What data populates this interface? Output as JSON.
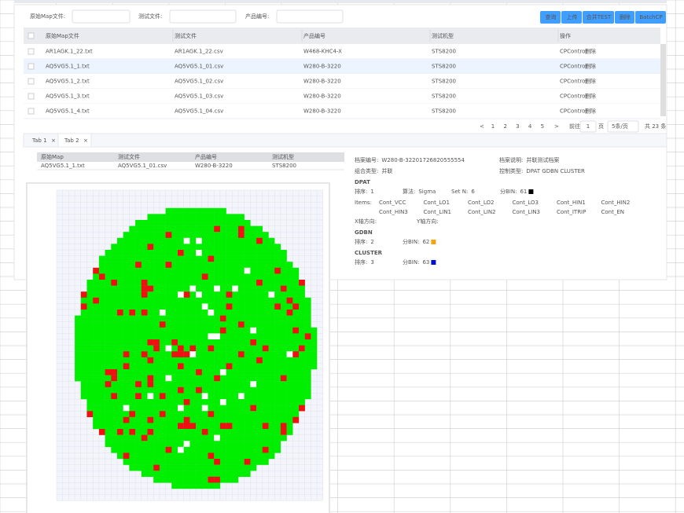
{
  "filters": [
    "原始Map文件:",
    "测试文件:",
    "产品编号:"
  ],
  "buttons": [
    "查询",
    "上传",
    "合并TEST",
    "删除",
    "BatchCP"
  ],
  "table": {
    "headers": [
      "原始Map文件",
      "测试文件",
      "产品编号",
      "测试机型",
      "操作"
    ],
    "rows": [
      [
        "AR1AGK.1_22.txt",
        "AR1AGK.1_22.csv",
        "W468-KHC4-X",
        "STS8200",
        "CPControl",
        "删除"
      ],
      [
        "AQ5VG5.1_1.txt",
        "AQ5VG5.1_01.csv",
        "W280-B-3220",
        "STS8200",
        "CPControl",
        "删除"
      ],
      [
        "AQ5VG5.1_2.txt",
        "AQ5VG5.1_02.csv",
        "W280-B-3220",
        "STS8200",
        "CPControl",
        "删除"
      ],
      [
        "AQ5VG5.1_3.txt",
        "AQ5VG5.1_03.csv",
        "W280-B-3220",
        "STS8200",
        "CPControl",
        "删除"
      ],
      [
        "AQ5VG5.1_4.txt",
        "AQ5VG5.1_04.csv",
        "W280-B-3220",
        "STS8200",
        "CPControl",
        "删除"
      ]
    ]
  },
  "pagination": {
    "prev": "<",
    "pages": [
      1,
      2,
      3,
      4,
      5
    ],
    "next": ">",
    "goto": "前往",
    "page_input": 1,
    "page_unit": "页",
    "page_size": "5条/页",
    "total": "共 23 条"
  },
  "tabs": [
    "Tab 1",
    "Tab 2"
  ],
  "detail_table": {
    "headers": [
      "原始Map",
      "测试文件",
      "产品编号",
      "测试机型"
    ],
    "row": [
      "AQ5VG5.1_1.txt",
      "AQ5VG5.1_01.csv",
      "W280-B-3220",
      "STS8200"
    ]
  },
  "info": {
    "fields": [
      {
        "label": "档案编号:",
        "value": "W280-B-32201726820555554"
      },
      {
        "label": "档案说明:",
        "value": "并联测试档案"
      },
      {
        "label": "组合类型:",
        "value": "并联"
      },
      {
        "label": "控制类型:",
        "value": "DPAT GDBN CLUSTER"
      }
    ],
    "sections": [
      {
        "title": "DPAT",
        "color": "#000000",
        "params": [
          {
            "label": "排序:",
            "value": 1
          },
          {
            "label": "算法:",
            "value": "Sigma"
          },
          {
            "label": "Set N:",
            "value": 6
          },
          {
            "label": "分BIN:",
            "value": 61
          }
        ],
        "items_label": "Items:",
        "items": [
          "Cont_VCC",
          "Cont_LO1",
          "Cont_LO2",
          "Cont_LO3",
          "Cont_HIN1",
          "Cont_HIN2",
          "Cont_HIN3",
          "Cont_LIN1",
          "Cont_LIN2",
          "Cont_LIN3",
          "Cont_ITRIP",
          "Cont_EN"
        ],
        "axes": [
          "X轴方向:",
          "Y轴方向:"
        ]
      },
      {
        "title": "GDBN",
        "color": "#f5a30a",
        "params": [
          {
            "label": "排序:",
            "value": 2
          },
          {
            "label": "分BIN:",
            "value": 62
          }
        ]
      },
      {
        "title": "CLUSTER",
        "color": "#0010d0",
        "params": [
          {
            "label": "排序:",
            "value": 3
          },
          {
            "label": "分BIN:",
            "value": 63
          }
        ]
      }
    ]
  },
  "wafer": {
    "pass_color": "#00ee00",
    "fail_color": "#ee1111"
  }
}
